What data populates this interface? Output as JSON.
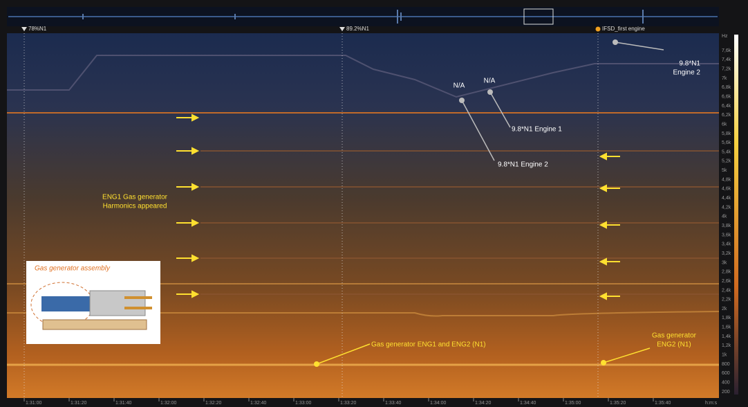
{
  "markers": [
    "78%N1",
    "89.2%N1",
    "IFSD_first engine"
  ],
  "frequency_axis": {
    "unit": "Hz",
    "labels": [
      "7,6k",
      "7,4k",
      "7,2k",
      "7k",
      "6,8k",
      "6,6k",
      "6,4k",
      "6,2k",
      "6k",
      "5,8k",
      "5,6k",
      "5,4k",
      "5,2k",
      "5k",
      "4,8k",
      "4,6k",
      "4,4k",
      "4,2k",
      "4k",
      "3,8k",
      "3,6k",
      "3,4k",
      "3,2k",
      "3k",
      "2,8k",
      "2,6k",
      "2,4k",
      "2,2k",
      "2k",
      "1,8k",
      "1,6k",
      "1,4k",
      "1,2k",
      "1k",
      "800",
      "600",
      "400",
      "200"
    ]
  },
  "time_axis": {
    "labels": [
      "1:31:00",
      "1:31:20",
      "1:31:40",
      "1:32:00",
      "1:32:20",
      "1:32:40",
      "1:33:00",
      "1:33:20",
      "1:33:40",
      "1:34:00",
      "1:34:20",
      "1:34:40",
      "1:35:00",
      "1:35:20",
      "1:35:40"
    ],
    "unit": "h:m:s"
  },
  "annotations": {
    "na_1": [
      "N/A"
    ],
    "na_2": [
      "N/A"
    ],
    "engine1": [
      "9.8*N1 Engine 1"
    ],
    "engine2_mid": [
      "9.8*N1 Engine 2"
    ],
    "engine2_top": [
      "9.8*N1",
      "Engine 2"
    ],
    "harmonics": [
      "ENG1 Gas generator",
      "Harmonics appeared"
    ],
    "inset_title": [
      "Gas generator assembly"
    ],
    "gg_both": [
      "Gas generator ENG1 and ENG2 (N1)"
    ],
    "gg_eng2": [
      "Gas generator",
      "ENG2 (N1)"
    ]
  }
}
